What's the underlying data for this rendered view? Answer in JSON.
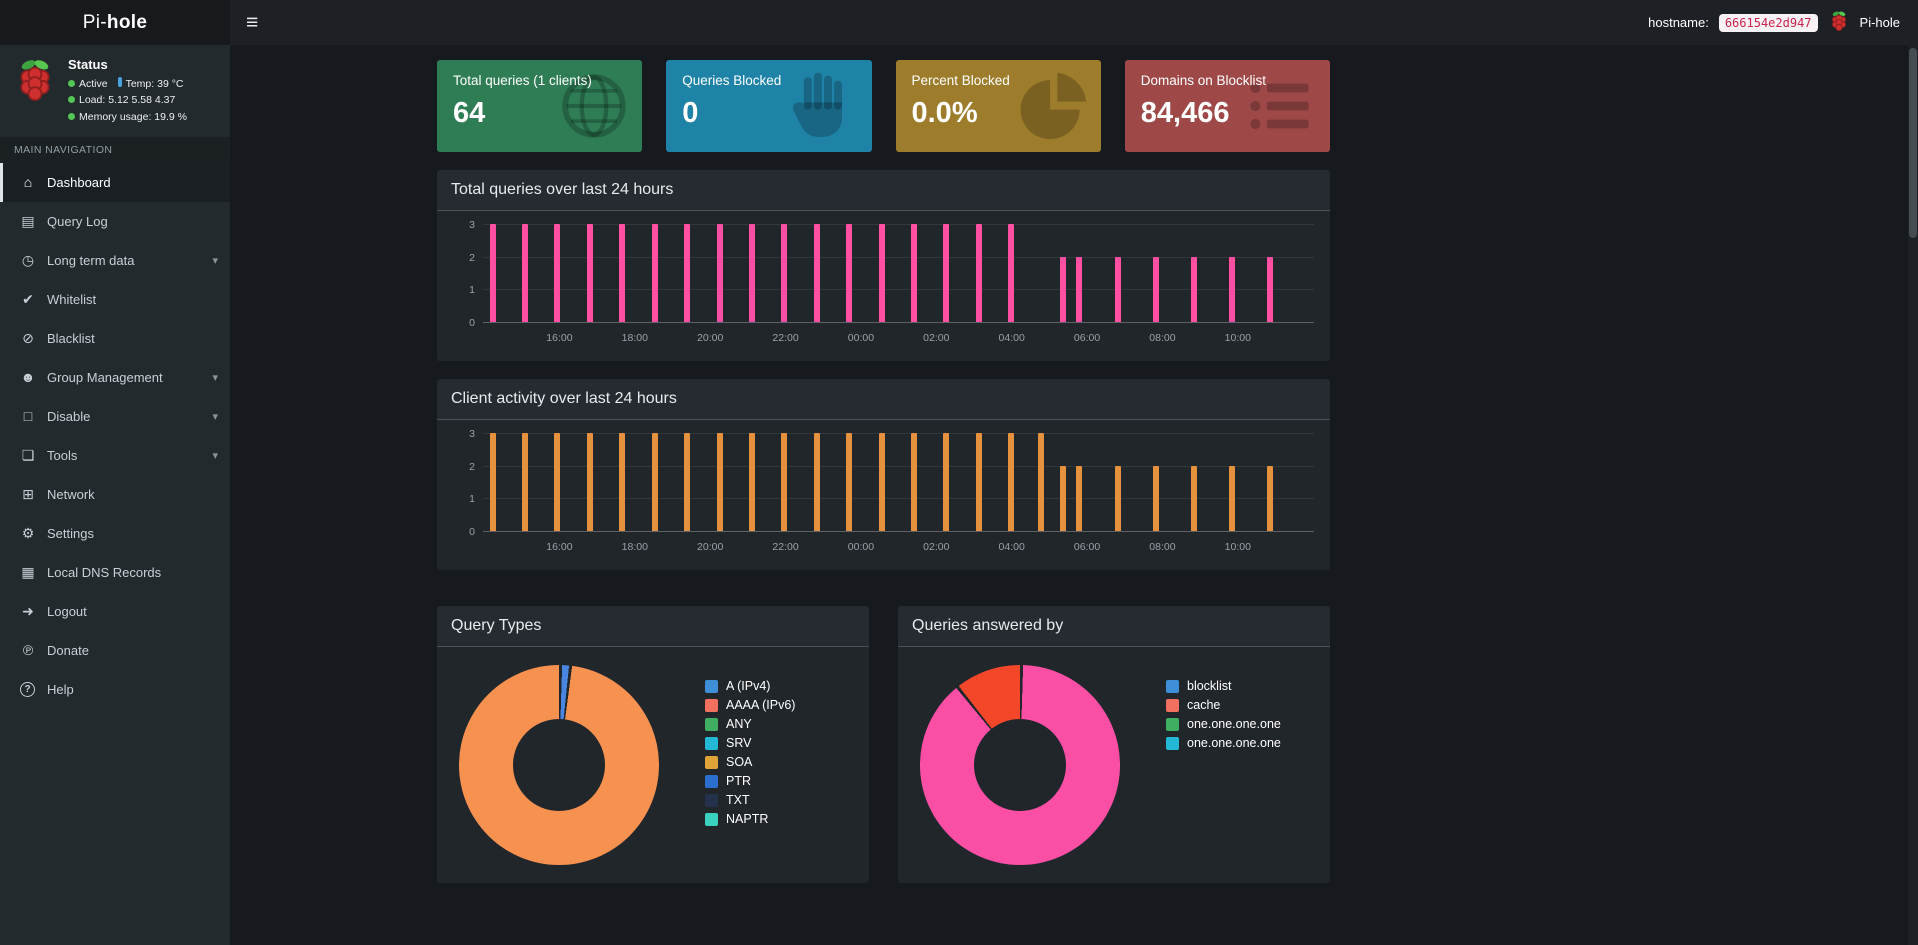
{
  "navbar": {
    "brand_prefix": "Pi-",
    "brand_bold": "hole",
    "hostname_label": "hostname:",
    "hostname_value": "666154e2d947",
    "right_brand": "Pi-hole"
  },
  "icons": {
    "hamburger": "≡",
    "chevron": "▾"
  },
  "sidebar": {
    "status_title": "Status",
    "status_items": [
      {
        "icon": "dot",
        "text": "Active"
      },
      {
        "icon": "thermometer",
        "text": "Temp: 39 °C"
      },
      {
        "icon": "dot",
        "text": "Load: 5.12 5.58 4.37"
      },
      {
        "icon": "dot",
        "text": "Memory usage: 19.9 %"
      }
    ],
    "nav_header": "MAIN NAVIGATION",
    "items": [
      {
        "label": "Dashboard",
        "icon_name": "home-icon",
        "glyph": "⌂",
        "active": true,
        "expandable": false
      },
      {
        "label": "Query Log",
        "icon_name": "file-icon",
        "glyph": "▤",
        "active": false,
        "expandable": false
      },
      {
        "label": "Long term data",
        "icon_name": "clock-icon",
        "glyph": "◷",
        "active": false,
        "expandable": true
      },
      {
        "label": "Whitelist",
        "icon_name": "check-circle-icon",
        "glyph": "✔",
        "active": false,
        "expandable": false
      },
      {
        "label": "Blacklist",
        "icon_name": "ban-icon",
        "glyph": "⊘",
        "active": false,
        "expandable": false
      },
      {
        "label": "Group Management",
        "icon_name": "users-icon",
        "glyph": "☻",
        "active": false,
        "expandable": true
      },
      {
        "label": "Disable",
        "icon_name": "stop-icon",
        "glyph": "□",
        "active": false,
        "expandable": true
      },
      {
        "label": "Tools",
        "icon_name": "folder-icon",
        "glyph": "❏",
        "active": false,
        "expandable": true
      },
      {
        "label": "Network",
        "icon_name": "network-icon",
        "glyph": "⊞",
        "active": false,
        "expandable": false
      },
      {
        "label": "Settings",
        "icon_name": "gears-icon",
        "glyph": "⚙",
        "active": false,
        "expandable": false
      },
      {
        "label": "Local DNS Records",
        "icon_name": "address-book-icon",
        "glyph": "▦",
        "active": false,
        "expandable": false
      },
      {
        "label": "Logout",
        "icon_name": "sign-out-icon",
        "glyph": "➜",
        "active": false,
        "expandable": false
      },
      {
        "label": "Donate",
        "icon_name": "paypal-icon",
        "glyph": "℗",
        "active": false,
        "expandable": false
      },
      {
        "label": "Help",
        "icon_name": "question-icon",
        "glyph": "?",
        "active": false,
        "expandable": false
      }
    ]
  },
  "cards": [
    {
      "title": "Total queries (1 clients)",
      "value": "64",
      "color": "#2e7d55",
      "icon": "globe-icon"
    },
    {
      "title": "Queries Blocked",
      "value": "0",
      "color": "#1f83a8",
      "icon": "hand-icon"
    },
    {
      "title": "Percent Blocked",
      "value": "0.0%",
      "color": "#9d7d2b",
      "icon": "pie-chart-icon"
    },
    {
      "title": "Domains on Blocklist",
      "value": "84,466",
      "color": "#9e4848",
      "icon": "list-icon"
    }
  ],
  "chart_data": [
    {
      "type": "bar",
      "title": "Total queries over last 24 hours",
      "color": "#ff4fa3",
      "ylim": [
        0,
        3
      ],
      "yticks": [
        0,
        1,
        2,
        3
      ],
      "x_tick_labels": [
        "16:00",
        "18:00",
        "20:00",
        "22:00",
        "00:00",
        "02:00",
        "04:00",
        "06:00",
        "08:00",
        "10:00"
      ],
      "bars": [
        [
          0.008,
          3
        ],
        [
          0.047,
          3
        ],
        [
          0.086,
          3
        ],
        [
          0.125,
          3
        ],
        [
          0.164,
          3
        ],
        [
          0.203,
          3
        ],
        [
          0.242,
          3
        ],
        [
          0.281,
          3
        ],
        [
          0.32,
          3
        ],
        [
          0.359,
          3
        ],
        [
          0.398,
          3
        ],
        [
          0.437,
          3
        ],
        [
          0.476,
          3
        ],
        [
          0.515,
          3
        ],
        [
          0.554,
          3
        ],
        [
          0.593,
          3
        ],
        [
          0.632,
          3
        ],
        [
          0.694,
          2
        ],
        [
          0.714,
          2
        ],
        [
          0.76,
          2
        ],
        [
          0.806,
          2
        ],
        [
          0.852,
          2
        ],
        [
          0.898,
          2
        ],
        [
          0.944,
          2
        ]
      ]
    },
    {
      "type": "bar",
      "title": "Client activity over last 24 hours",
      "color": "#e6913e",
      "ylim": [
        0,
        3
      ],
      "yticks": [
        0,
        1,
        2,
        3
      ],
      "x_tick_labels": [
        "16:00",
        "18:00",
        "20:00",
        "22:00",
        "00:00",
        "02:00",
        "04:00",
        "06:00",
        "08:00",
        "10:00"
      ],
      "bars": [
        [
          0.008,
          3
        ],
        [
          0.047,
          3
        ],
        [
          0.086,
          3
        ],
        [
          0.125,
          3
        ],
        [
          0.164,
          3
        ],
        [
          0.203,
          3
        ],
        [
          0.242,
          3
        ],
        [
          0.281,
          3
        ],
        [
          0.32,
          3
        ],
        [
          0.359,
          3
        ],
        [
          0.398,
          3
        ],
        [
          0.437,
          3
        ],
        [
          0.476,
          3
        ],
        [
          0.515,
          3
        ],
        [
          0.554,
          3
        ],
        [
          0.593,
          3
        ],
        [
          0.632,
          3
        ],
        [
          0.668,
          3
        ],
        [
          0.694,
          2
        ],
        [
          0.714,
          2
        ],
        [
          0.76,
          2
        ],
        [
          0.806,
          2
        ],
        [
          0.852,
          2
        ],
        [
          0.898,
          2
        ],
        [
          0.944,
          2
        ]
      ]
    },
    {
      "type": "doughnut",
      "title": "Query Types",
      "slices": [
        {
          "label": "A (IPv4)",
          "value": 1.6,
          "color": "#4a86e0"
        },
        {
          "label": "AAAA (IPv6)",
          "value": 98.4,
          "color": "#f79150"
        }
      ],
      "legend": [
        {
          "label": "A (IPv4)",
          "color": "#3f8fd8"
        },
        {
          "label": "AAAA (IPv6)",
          "color": "#f2705f"
        },
        {
          "label": "ANY",
          "color": "#3fae62"
        },
        {
          "label": "SRV",
          "color": "#22b8d6"
        },
        {
          "label": "SOA",
          "color": "#dfa437"
        },
        {
          "label": "PTR",
          "color": "#2a6fce"
        },
        {
          "label": "TXT",
          "color": "#24324e"
        },
        {
          "label": "NAPTR",
          "color": "#3bd1c0"
        }
      ],
      "legend_position": "right"
    },
    {
      "type": "doughnut",
      "title": "Queries answered by",
      "slices": [
        {
          "label": "one.one.one.one",
          "value": 89,
          "color": "#fb4fa6"
        },
        {
          "label": "cache",
          "value": 11,
          "color": "#f4472a"
        }
      ],
      "legend": [
        {
          "label": "blocklist",
          "color": "#3f8fd8"
        },
        {
          "label": "cache",
          "color": "#f2705f"
        },
        {
          "label": "one.one.one.one",
          "color": "#3fae62"
        },
        {
          "label": "one.one.one.one",
          "color": "#22b8d6"
        }
      ],
      "legend_position": "right"
    }
  ]
}
